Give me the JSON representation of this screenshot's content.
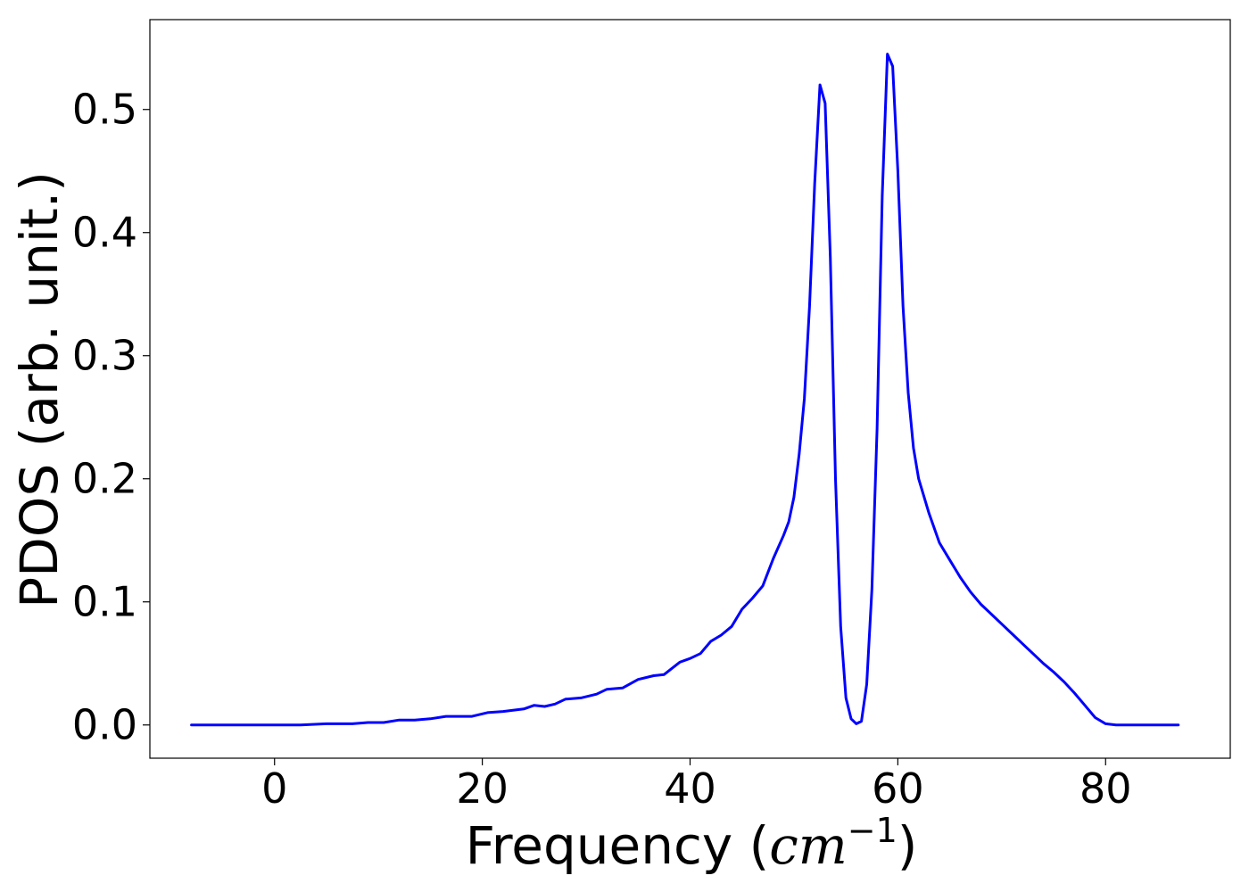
{
  "chart_data": {
    "type": "line",
    "title": "",
    "xlabel": {
      "text_prefix": "Frequency (",
      "math_base": "cm",
      "math_sup": "−1",
      "text_suffix": ")"
    },
    "ylabel": "PDOS (arb. unit.)",
    "xlim": [
      -12,
      92
    ],
    "ylim": [
      -0.027,
      0.573
    ],
    "xticks": [
      0,
      20,
      40,
      60,
      80
    ],
    "xtick_labels": [
      "0",
      "20",
      "40",
      "60",
      "80"
    ],
    "yticks": [
      0.0,
      0.1,
      0.2,
      0.3,
      0.4,
      0.5
    ],
    "ytick_labels": [
      "0.0",
      "0.1",
      "0.2",
      "0.3",
      "0.4",
      "0.5"
    ],
    "grid": false,
    "legend": "none",
    "series": [
      {
        "color": "#0000ff",
        "x": [
          -8,
          0,
          2.5,
          5,
          7.5,
          9,
          10.5,
          12,
          13.5,
          15,
          16.5,
          17.5,
          19,
          20.5,
          22,
          24,
          25,
          26,
          27,
          28,
          29.5,
          31,
          32,
          33.5,
          35,
          36.5,
          37.5,
          39,
          40,
          41,
          42,
          43,
          44,
          45,
          46,
          47,
          48,
          49,
          49.5,
          50,
          50.5,
          51,
          51.5,
          52,
          52.5,
          53,
          53.5,
          54,
          54.5,
          55,
          55.5,
          56,
          56.5,
          57,
          57.5,
          58,
          58.5,
          59,
          59.5,
          60,
          60.5,
          61,
          61.5,
          62,
          63,
          64,
          65,
          66,
          67,
          68,
          69,
          70,
          71,
          72,
          73,
          74,
          75,
          76,
          77,
          78,
          79,
          80,
          81,
          83,
          85,
          87
        ],
        "y": [
          0.0,
          0.0,
          0.0,
          0.001,
          0.001,
          0.002,
          0.002,
          0.004,
          0.004,
          0.005,
          0.007,
          0.007,
          0.007,
          0.01,
          0.011,
          0.013,
          0.016,
          0.015,
          0.017,
          0.021,
          0.022,
          0.025,
          0.029,
          0.03,
          0.037,
          0.04,
          0.041,
          0.051,
          0.054,
          0.058,
          0.068,
          0.073,
          0.08,
          0.094,
          0.103,
          0.113,
          0.135,
          0.154,
          0.165,
          0.185,
          0.22,
          0.265,
          0.34,
          0.44,
          0.52,
          0.505,
          0.38,
          0.2,
          0.08,
          0.022,
          0.005,
          0.001,
          0.003,
          0.033,
          0.11,
          0.24,
          0.43,
          0.545,
          0.535,
          0.45,
          0.34,
          0.27,
          0.225,
          0.2,
          0.172,
          0.148,
          0.134,
          0.12,
          0.108,
          0.098,
          0.09,
          0.082,
          0.074,
          0.066,
          0.058,
          0.05,
          0.043,
          0.035,
          0.026,
          0.016,
          0.006,
          0.001,
          0.0,
          0.0,
          0.0,
          0.0
        ]
      }
    ]
  }
}
